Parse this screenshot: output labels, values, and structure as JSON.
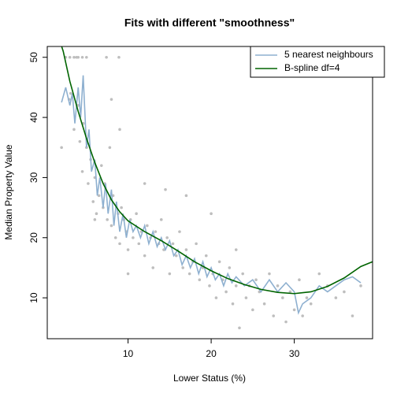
{
  "chart_data": {
    "type": "scatter-fits",
    "title": "Fits with different \"smoothness\"",
    "xlabel": "Lower Status (%)",
    "ylabel": "Median Property Value",
    "xlim": [
      0.28,
      39.42
    ],
    "ylim": [
      3.2,
      51.8
    ],
    "xticks": [
      10,
      20,
      30
    ],
    "yticks": [
      10,
      20,
      30,
      40,
      50
    ],
    "legend": "top-right",
    "points": {
      "color": "#bebebe",
      "x": [
        3,
        3.5,
        4,
        4.5,
        5,
        2.5,
        3.8,
        7.4,
        8.9,
        2,
        2.9,
        3.1,
        3.5,
        4,
        4.2,
        4.5,
        4.6,
        5,
        5.2,
        5.5,
        5.8,
        6,
        6.2,
        6.5,
        6.8,
        7,
        7.2,
        7.5,
        7.8,
        8,
        8.2,
        8.5,
        8.8,
        9,
        9.2,
        9.5,
        9.8,
        10,
        10.3,
        10.6,
        11,
        11.3,
        11.6,
        12,
        12.3,
        12.7,
        13,
        13.3,
        13.7,
        14,
        14.3,
        14.7,
        15,
        15.4,
        15.8,
        16.2,
        16.6,
        17,
        17.4,
        17.8,
        18.2,
        18.6,
        19,
        19.4,
        19.8,
        20.2,
        20.6,
        21,
        21.4,
        21.8,
        22.2,
        22.6,
        23,
        23.4,
        23.8,
        24.2,
        24.6,
        25,
        25.4,
        25.8,
        26.4,
        27,
        27.5,
        28,
        28.6,
        29,
        29.5,
        30,
        30.6,
        31,
        31.5,
        32,
        33,
        34,
        35,
        36,
        37,
        38,
        20,
        23,
        17,
        10,
        9,
        12,
        6,
        8,
        14.5
      ],
      "y": [
        50,
        50,
        50,
        50,
        50,
        50,
        50,
        50,
        50,
        35,
        43,
        44,
        38,
        42,
        36,
        31,
        39,
        35,
        29,
        33,
        26,
        30,
        24,
        27,
        32,
        25,
        29,
        23,
        35,
        22,
        27,
        20,
        24,
        19,
        25,
        23,
        21,
        18,
        23,
        20,
        24,
        19,
        21,
        17,
        22,
        20,
        15,
        21,
        19,
        23,
        18,
        20,
        14,
        19,
        17,
        21,
        15,
        18,
        14,
        16,
        19,
        13,
        15,
        17,
        12,
        14,
        10,
        16,
        13,
        11,
        15,
        9,
        12,
        5,
        14,
        10,
        12,
        8,
        13,
        11,
        9,
        14,
        7,
        12,
        10,
        6,
        11,
        8,
        13,
        7,
        10,
        9,
        14,
        12,
        10,
        11,
        7,
        12,
        24,
        18,
        27,
        14,
        38,
        29,
        23,
        43,
        28
      ]
    },
    "series": [
      {
        "name": "5 nearest neighbours",
        "color": "#8eb0d0",
        "x": [
          2,
          2.5,
          3,
          3.3,
          3.6,
          4,
          4.3,
          4.6,
          5,
          5.3,
          5.6,
          6,
          6.3,
          6.6,
          7,
          7.3,
          7.6,
          8,
          8.3,
          8.6,
          9,
          9.4,
          9.8,
          10.2,
          10.6,
          11,
          11.5,
          12,
          12.5,
          13,
          13.5,
          14,
          14.5,
          15,
          15.5,
          16,
          16.5,
          17,
          17.5,
          18,
          18.5,
          19,
          19.5,
          20,
          20.5,
          21,
          21.5,
          22,
          22.5,
          23,
          24,
          25,
          26,
          27,
          28,
          29,
          30,
          30.5,
          31,
          32,
          33,
          34,
          35,
          36,
          37,
          38
        ],
        "values": [
          42.5,
          45,
          42,
          44,
          39,
          45,
          40,
          47,
          35,
          38,
          31,
          33,
          27,
          30,
          25,
          29,
          24,
          28,
          22,
          26,
          21,
          24,
          20,
          23,
          21,
          22,
          20,
          22,
          19,
          21,
          18.5,
          20,
          18,
          19.5,
          17,
          18,
          15.5,
          17,
          15,
          16.5,
          14,
          16,
          13.5,
          15,
          13,
          14,
          12,
          14,
          12.5,
          13.5,
          12,
          13,
          11,
          13,
          11,
          12.5,
          11,
          7.5,
          9,
          10,
          12,
          11,
          12,
          13,
          13.5,
          12.5
        ]
      },
      {
        "name": "B-spline df=4",
        "color": "#006400",
        "x": [
          1.73,
          2.2,
          3,
          4,
          5,
          6,
          7,
          8,
          9,
          10,
          12,
          14,
          16,
          18,
          20,
          22,
          24,
          26,
          28,
          30,
          32,
          34,
          36,
          38,
          39.42
        ],
        "values": [
          53,
          51,
          46,
          41,
          36.5,
          32.5,
          29,
          26.3,
          24.3,
          22.8,
          21,
          19.5,
          17.8,
          16,
          14.5,
          13.2,
          12.2,
          11.4,
          10.9,
          10.7,
          11,
          11.9,
          13.3,
          15.2,
          16
        ]
      }
    ]
  }
}
